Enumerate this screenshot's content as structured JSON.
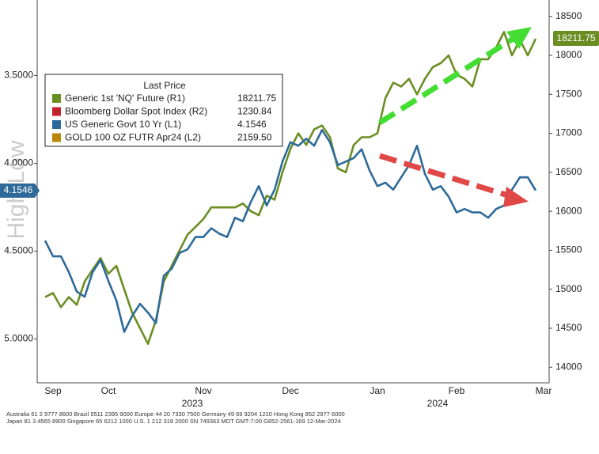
{
  "chart_data": {
    "type": "line",
    "legend_title": "Last Price",
    "categories": [
      null,
      "Sep",
      null,
      null,
      null,
      null,
      null,
      null,
      "Oct",
      null,
      null,
      null,
      null,
      null,
      null,
      null,
      null,
      null,
      null,
      null,
      "Nov",
      null,
      null,
      null,
      null,
      null,
      null,
      null,
      null,
      null,
      null,
      "Dec",
      null,
      null,
      null,
      null,
      null,
      null,
      null,
      null,
      null,
      null,
      "Jan",
      null,
      null,
      null,
      null,
      null,
      null,
      null,
      null,
      null,
      "Feb",
      null,
      null,
      null,
      null,
      null,
      null,
      null,
      null,
      null,
      null,
      "Mar"
    ],
    "x_groups": [
      {
        "label": "2023"
      },
      {
        "label": "2024"
      }
    ],
    "series": [
      {
        "name": "Generic 1st 'NQ' Future  (R1)",
        "color": "#6b8e23",
        "axis": "y2",
        "values": [
          14900,
          14950,
          14770,
          14900,
          14800,
          15100,
          15250,
          15400,
          15200,
          15300,
          15000,
          14700,
          14500,
          14300,
          14600,
          15100,
          15300,
          15500,
          15700,
          15800,
          15900,
          16050,
          16050,
          16050,
          16050,
          16100,
          16000,
          15950,
          16200,
          16150,
          16500,
          16800,
          17000,
          16850,
          17050,
          17100,
          16950,
          16550,
          16500,
          16850,
          16950,
          16950,
          17000,
          17450,
          17650,
          17600,
          17700,
          17500,
          17700,
          17850,
          17900,
          18000,
          17750,
          17700,
          17600,
          17950,
          17950,
          18100,
          18300,
          18000,
          18200,
          18000,
          18211.75,
          null
        ]
      },
      {
        "name": "US Generic Govt 10 Yr  (L1)",
        "color": "#2e6a99",
        "axis": "y",
        "values": [
          4.44,
          4.53,
          4.53,
          4.62,
          4.73,
          4.76,
          4.62,
          4.55,
          4.67,
          4.78,
          4.96,
          4.87,
          4.8,
          4.85,
          4.91,
          4.64,
          4.6,
          4.51,
          4.49,
          4.42,
          4.42,
          4.37,
          4.4,
          4.42,
          4.31,
          4.33,
          4.22,
          4.13,
          4.24,
          4.15,
          3.99,
          3.88,
          3.9,
          3.86,
          3.9,
          3.81,
          3.88,
          4.01,
          3.99,
          3.97,
          3.92,
          4.04,
          4.13,
          4.11,
          4.15,
          4.08,
          4.01,
          3.9,
          4.06,
          4.15,
          4.13,
          4.19,
          4.28,
          4.26,
          4.28,
          4.28,
          4.31,
          4.26,
          4.24,
          4.15,
          4.08,
          4.08,
          4.1546,
          null
        ]
      }
    ],
    "legend_extra": [
      {
        "name": "Bloomberg Dollar Spot Index  (R2)",
        "color": "#c0232b",
        "last_label": "1230.84"
      },
      {
        "name": "GOLD 100 OZ FUTR Apr24  (L2)",
        "color": "#b8860b",
        "last_label": "2159.50"
      }
    ],
    "ylim": [
      3.07,
      5.25
    ],
    "y_inverted": true,
    "yticks": [
      {
        "value": 3.5,
        "label": "3.5000"
      },
      {
        "value": 4.0,
        "label": "4.0000"
      },
      {
        "value": 4.5,
        "label": "4.5000"
      },
      {
        "value": 5.0,
        "label": "5.0000"
      }
    ],
    "y2lim": [
      13800,
      18710
    ],
    "y2ticks": [
      14000,
      14500,
      15000,
      15500,
      16000,
      16500,
      17000,
      17500,
      18000,
      18500
    ],
    "grid": false,
    "watermark": "High Low",
    "footer": [
      "Australia 61 2 9777 8600 Brazil 5511 2395 9000 Europe 44 20 7330 7500 Germany 49 69 9204 1210 Hong Kong 852 2977 6000",
      "Japan 81 3 4565 8900 Singapore 65 6212 1000 U.S. 1 212 318 2000 SN 749363 MDT GMT-7:00 G852-2561-169 12-Mar-2024"
    ]
  }
}
